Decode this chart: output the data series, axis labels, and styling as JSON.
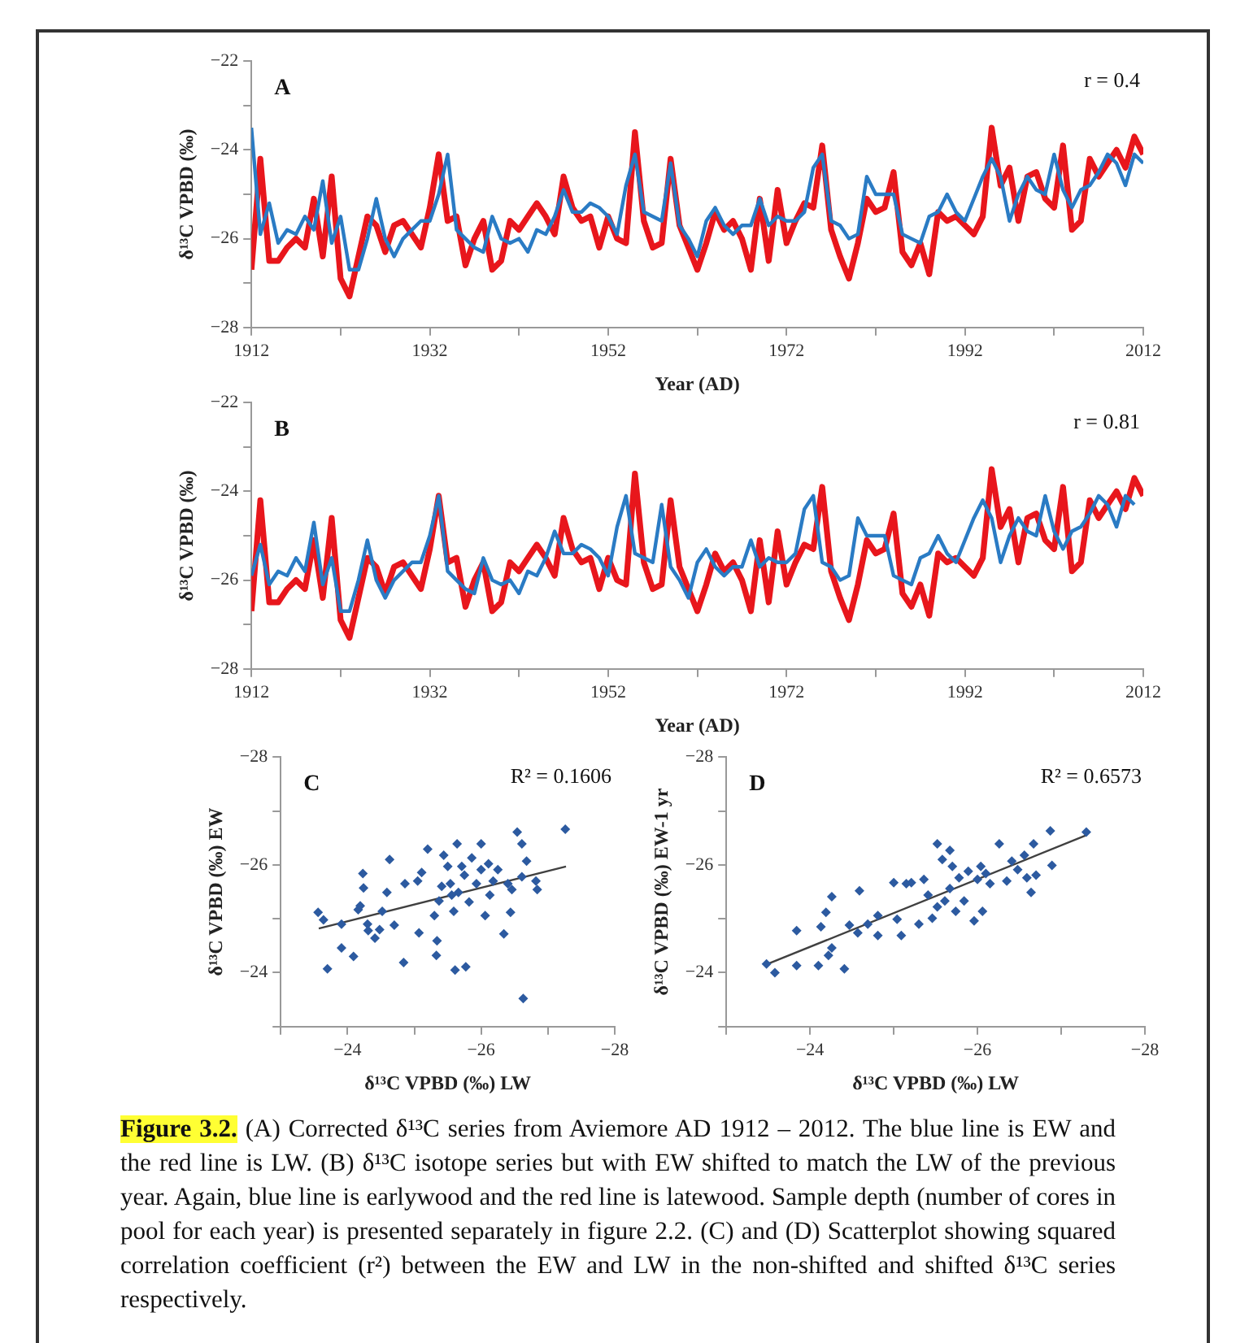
{
  "chart_data": [
    {
      "type": "line",
      "xlabel": "Year (AD)",
      "ylabel": "δ¹³C VPBD (‰)",
      "annotations": [
        "A",
        "r = 0.4"
      ],
      "marker": "none",
      "grid": false,
      "legend": false,
      "xlim": [
        1912,
        2012
      ],
      "xticks": [
        1912,
        {
          "value": 1922,
          "label": null
        },
        1932,
        {
          "value": 1942,
          "label": null
        },
        1952,
        {
          "value": 1962,
          "label": null
        },
        1972,
        {
          "value": 1982,
          "label": null
        },
        1992,
        {
          "value": 2002,
          "label": null
        },
        2012
      ],
      "ylim": [
        -28,
        -22
      ],
      "yticks": [
        -28,
        {
          "value": -27,
          "label": null
        },
        -26,
        {
          "value": -25,
          "label": null
        },
        -24,
        {
          "value": -23,
          "label": null
        },
        -22
      ],
      "x": [
        1912,
        1913,
        1914,
        1915,
        1916,
        1917,
        1918,
        1919,
        1920,
        1921,
        1922,
        1923,
        1924,
        1925,
        1926,
        1927,
        1928,
        1929,
        1930,
        1931,
        1932,
        1933,
        1934,
        1935,
        1936,
        1937,
        1938,
        1939,
        1940,
        1941,
        1942,
        1943,
        1944,
        1945,
        1946,
        1947,
        1948,
        1949,
        1950,
        1951,
        1952,
        1953,
        1954,
        1955,
        1956,
        1957,
        1958,
        1959,
        1960,
        1961,
        1962,
        1963,
        1964,
        1965,
        1966,
        1967,
        1968,
        1969,
        1970,
        1971,
        1972,
        1973,
        1974,
        1975,
        1976,
        1977,
        1978,
        1979,
        1980,
        1981,
        1982,
        1983,
        1984,
        1985,
        1986,
        1987,
        1988,
        1989,
        1990,
        1991,
        1992,
        1993,
        1994,
        1995,
        1996,
        1997,
        1998,
        1999,
        2000,
        2001,
        2002,
        2003,
        2004,
        2005,
        2006,
        2007,
        2008,
        2009,
        2010,
        2011,
        2012
      ],
      "series": [
        {
          "color": "#2a7bc4",
          "values": [
            -23.5,
            -25.9,
            -25.2,
            -26.1,
            -25.8,
            -25.9,
            -25.5,
            -25.8,
            -24.7,
            -26.1,
            -25.5,
            -26.7,
            -26.7,
            -26.0,
            -25.1,
            -26.0,
            -26.4,
            -26.0,
            -25.8,
            -25.6,
            -25.6,
            -25.0,
            -24.1,
            -25.8,
            -26.0,
            -26.2,
            -26.3,
            -25.5,
            -26.0,
            -26.1,
            -26.0,
            -26.3,
            -25.8,
            -25.9,
            -25.5,
            -24.9,
            -25.4,
            -25.4,
            -25.2,
            -25.3,
            -25.5,
            -25.9,
            -24.8,
            -24.1,
            -25.4,
            -25.5,
            -25.6,
            -24.3,
            -25.7,
            -26.0,
            -26.4,
            -25.6,
            -25.3,
            -25.7,
            -25.9,
            -25.7,
            -25.7,
            -25.1,
            -25.7,
            -25.5,
            -25.6,
            -25.6,
            -25.4,
            -24.4,
            -24.1,
            -25.6,
            -25.7,
            -26.0,
            -25.9,
            -24.6,
            -25.0,
            -25.0,
            -25.0,
            -25.9,
            -26.0,
            -26.1,
            -25.5,
            -25.4,
            -25.0,
            -25.4,
            -25.6,
            -25.1,
            -24.6,
            -24.2,
            -24.6,
            -25.6,
            -25.0,
            -24.6,
            -24.9,
            -25.0,
            -24.1,
            -24.9,
            -25.3,
            -24.9,
            -24.8,
            -24.5,
            -24.1,
            -24.3,
            -24.8,
            -24.1,
            -24.3
          ]
        },
        {
          "color": "#e8161c",
          "values": [
            -26.7,
            -24.2,
            -26.5,
            -26.5,
            -26.2,
            -26.0,
            -26.2,
            -25.1,
            -26.4,
            -24.6,
            -26.9,
            -27.3,
            -26.4,
            -25.5,
            -25.7,
            -26.3,
            -25.7,
            -25.6,
            -25.9,
            -26.2,
            -25.3,
            -24.1,
            -25.6,
            -25.5,
            -26.6,
            -26.0,
            -25.6,
            -26.7,
            -26.5,
            -25.6,
            -25.8,
            -25.5,
            -25.2,
            -25.5,
            -25.9,
            -24.6,
            -25.3,
            -25.6,
            -25.5,
            -26.2,
            -25.5,
            -26.0,
            -26.1,
            -23.6,
            -25.6,
            -26.2,
            -26.1,
            -24.2,
            -25.7,
            -26.2,
            -26.7,
            -26.1,
            -25.4,
            -25.8,
            -25.6,
            -26.0,
            -26.7,
            -25.1,
            -26.5,
            -24.9,
            -26.1,
            -25.6,
            -25.2,
            -25.3,
            -23.9,
            -25.8,
            -26.4,
            -26.9,
            -26.1,
            -25.1,
            -25.4,
            -25.3,
            -24.5,
            -26.3,
            -26.6,
            -26.1,
            -26.8,
            -25.4,
            -25.6,
            -25.5,
            -25.7,
            -25.9,
            -25.5,
            -23.5,
            -24.8,
            -24.4,
            -25.6,
            -24.6,
            -24.5,
            -25.1,
            -25.3,
            -23.9,
            -25.8,
            -25.6,
            -24.2,
            -24.6,
            -24.3,
            -24.0,
            -24.4,
            -23.7,
            -24.1
          ]
        }
      ]
    },
    {
      "type": "line",
      "xlabel": "Year (AD)",
      "ylabel": "δ¹³C VPBD (‰)",
      "annotations": [
        "B",
        "r = 0.81"
      ],
      "marker": "none",
      "grid": false,
      "legend": false,
      "xlim": [
        1912,
        2012
      ],
      "xticks": [
        1912,
        {
          "value": 1922,
          "label": null
        },
        1932,
        {
          "value": 1942,
          "label": null
        },
        1952,
        {
          "value": 1962,
          "label": null
        },
        1972,
        {
          "value": 1982,
          "label": null
        },
        1992,
        {
          "value": 2002,
          "label": null
        },
        2012
      ],
      "ylim": [
        -28,
        -22
      ],
      "yticks": [
        -28,
        {
          "value": -27,
          "label": null
        },
        -26,
        {
          "value": -25,
          "label": null
        },
        -24,
        {
          "value": -23,
          "label": null
        },
        -22
      ],
      "x": [
        1912,
        1913,
        1914,
        1915,
        1916,
        1917,
        1918,
        1919,
        1920,
        1921,
        1922,
        1923,
        1924,
        1925,
        1926,
        1927,
        1928,
        1929,
        1930,
        1931,
        1932,
        1933,
        1934,
        1935,
        1936,
        1937,
        1938,
        1939,
        1940,
        1941,
        1942,
        1943,
        1944,
        1945,
        1946,
        1947,
        1948,
        1949,
        1950,
        1951,
        1952,
        1953,
        1954,
        1955,
        1956,
        1957,
        1958,
        1959,
        1960,
        1961,
        1962,
        1963,
        1964,
        1965,
        1966,
        1967,
        1968,
        1969,
        1970,
        1971,
        1972,
        1973,
        1974,
        1975,
        1976,
        1977,
        1978,
        1979,
        1980,
        1981,
        1982,
        1983,
        1984,
        1985,
        1986,
        1987,
        1988,
        1989,
        1990,
        1991,
        1992,
        1993,
        1994,
        1995,
        1996,
        1997,
        1998,
        1999,
        2000,
        2001,
        2002,
        2003,
        2004,
        2005,
        2006,
        2007,
        2008,
        2009,
        2010,
        2011,
        2012
      ],
      "series": [
        {
          "color": "#2a7bc4",
          "values": [
            -25.9,
            -25.2,
            -26.1,
            -25.8,
            -25.9,
            -25.5,
            -25.8,
            -24.7,
            -26.1,
            -25.5,
            -26.7,
            -26.7,
            -26.0,
            -25.1,
            -26.0,
            -26.4,
            -26.0,
            -25.8,
            -25.6,
            -25.6,
            -25.0,
            -24.1,
            -25.8,
            -26.0,
            -26.2,
            -26.3,
            -25.5,
            -26.0,
            -26.1,
            -26.0,
            -26.3,
            -25.8,
            -25.9,
            -25.5,
            -24.9,
            -25.4,
            -25.4,
            -25.2,
            -25.3,
            -25.5,
            -25.9,
            -24.8,
            -24.1,
            -25.4,
            -25.5,
            -25.6,
            -24.3,
            -25.7,
            -26.0,
            -26.4,
            -25.6,
            -25.3,
            -25.7,
            -25.9,
            -25.7,
            -25.7,
            -25.1,
            -25.7,
            -25.5,
            -25.6,
            -25.6,
            -25.4,
            -24.4,
            -24.1,
            -25.6,
            -25.7,
            -26.0,
            -25.9,
            -24.6,
            -25.0,
            -25.0,
            -25.0,
            -25.9,
            -26.0,
            -26.1,
            -25.5,
            -25.4,
            -25.0,
            -25.4,
            -25.6,
            -25.1,
            -24.6,
            -24.2,
            -24.6,
            -25.6,
            -25.0,
            -24.6,
            -24.9,
            -25.0,
            -24.1,
            -24.9,
            -25.3,
            -24.9,
            -24.8,
            -24.5,
            -24.1,
            -24.3,
            -24.8,
            -24.1,
            -24.3,
            null
          ]
        },
        {
          "color": "#e8161c",
          "values": [
            -26.7,
            -24.2,
            -26.5,
            -26.5,
            -26.2,
            -26.0,
            -26.2,
            -25.1,
            -26.4,
            -24.6,
            -26.9,
            -27.3,
            -26.4,
            -25.5,
            -25.7,
            -26.3,
            -25.7,
            -25.6,
            -25.9,
            -26.2,
            -25.3,
            -24.1,
            -25.6,
            -25.5,
            -26.6,
            -26.0,
            -25.6,
            -26.7,
            -26.5,
            -25.6,
            -25.8,
            -25.5,
            -25.2,
            -25.5,
            -25.9,
            -24.6,
            -25.3,
            -25.6,
            -25.5,
            -26.2,
            -25.5,
            -26.0,
            -26.1,
            -23.6,
            -25.6,
            -26.2,
            -26.1,
            -24.2,
            -25.7,
            -26.2,
            -26.7,
            -26.1,
            -25.4,
            -25.8,
            -25.6,
            -26.0,
            -26.7,
            -25.1,
            -26.5,
            -24.9,
            -26.1,
            -25.6,
            -25.2,
            -25.3,
            -23.9,
            -25.8,
            -26.4,
            -26.9,
            -26.1,
            -25.1,
            -25.4,
            -25.3,
            -24.5,
            -26.3,
            -26.6,
            -26.1,
            -26.8,
            -25.4,
            -25.6,
            -25.5,
            -25.7,
            -25.9,
            -25.5,
            -23.5,
            -24.8,
            -24.4,
            -25.6,
            -24.6,
            -24.5,
            -25.1,
            -25.3,
            -23.9,
            -25.8,
            -25.6,
            -24.2,
            -24.6,
            -24.3,
            -24.0,
            -24.4,
            -23.7,
            -24.1
          ]
        }
      ]
    },
    {
      "type": "scatter",
      "xlabel": "δ¹³C VPBD (‰) LW",
      "ylabel": "δ¹³C VPBD (‰) EW",
      "annotations": [
        "C",
        "R² = 0.1606"
      ],
      "marker": "diamond",
      "grid": false,
      "legend": false,
      "xlim": [
        -23,
        -28
      ],
      "xticks": [
        {
          "value": -23,
          "label": null
        },
        -24,
        {
          "value": -25,
          "label": null
        },
        -26,
        {
          "value": -27,
          "label": null
        },
        -28
      ],
      "ylim": [
        -23,
        -28
      ],
      "yticks": [
        {
          "value": -23,
          "label": null
        },
        -24,
        {
          "value": -25,
          "label": null
        },
        -26,
        {
          "value": -27,
          "label": null
        },
        -28
      ],
      "series": [
        {
          "color": "#2c5aa0",
          "x": [
            -23.56,
            -23.64,
            -23.7,
            -23.91,
            -23.91,
            -24.09,
            -24.23,
            -24.24,
            -24.16,
            -24.19,
            -24.3,
            -24.31,
            -24.41,
            -24.48,
            -24.52,
            -24.59,
            -24.63,
            -24.7,
            -24.86,
            -24.84,
            -25.05,
            -25.07,
            -25.11,
            -25.2,
            -25.3,
            -25.33,
            -25.34,
            -25.37,
            -25.41,
            -25.44,
            -25.5,
            -25.54,
            -25.56,
            -25.59,
            -25.61,
            -25.64,
            -25.66,
            -25.71,
            -25.75,
            -25.77,
            -25.82,
            -25.86,
            -25.93,
            -26.0,
            -26.0,
            -26.06,
            -26.11,
            -26.13,
            -26.18,
            -26.25,
            -26.34,
            -26.4,
            -26.44,
            -26.46,
            -26.54,
            -26.61,
            -26.61,
            -26.68,
            -26.63,
            -26.82,
            -26.84,
            -27.26
          ],
          "values": [
            -25.12,
            -24.98,
            -24.07,
            -24.9,
            -24.46,
            -24.3,
            -25.84,
            -25.57,
            -25.17,
            -25.24,
            -24.9,
            -24.78,
            -24.64,
            -24.8,
            -25.14,
            -25.49,
            -26.1,
            -24.88,
            -25.65,
            -24.19,
            -25.7,
            -24.74,
            -25.86,
            -26.29,
            -25.06,
            -24.32,
            -24.59,
            -25.33,
            -25.6,
            -26.18,
            -25.97,
            -25.65,
            -25.44,
            -25.14,
            -24.05,
            -26.39,
            -25.49,
            -25.97,
            -25.81,
            -24.11,
            -25.31,
            -26.13,
            -25.65,
            -26.39,
            -25.91,
            -25.06,
            -26.02,
            -25.44,
            -25.7,
            -25.91,
            -24.72,
            -25.65,
            -25.12,
            -25.54,
            -26.61,
            -26.39,
            -25.78,
            -26.07,
            -23.52,
            -25.7,
            -25.54,
            -26.66
          ]
        },
        {
          "type": "line",
          "marker": "none",
          "color": "#404040",
          "x": [
            -23.57,
            -27.27
          ],
          "values": [
            -24.82,
            -25.97
          ]
        }
      ]
    },
    {
      "type": "scatter",
      "xlabel": "δ¹³C VPBD (‰) LW",
      "ylabel": "δ¹³C VPBD (‰) EW-1 yr",
      "annotations": [
        "D",
        "R² = 0.6573",
        "Figure 3.2.",
        "(A) Corrected δ¹³C series from Aviemore AD 1912 – 2012. The blue line is EW and the red line is LW. (B) δ¹³C isotope series but with EW shifted to match the LW of the previous year. Again, blue line is earlywood and the red line is latewood. Sample depth (number of cores in pool for each year) is presented separately in figure 2.2. (C) and (D) Scatterplot showing squared correlation coefficient (r²) between the EW and LW in the non-shifted and shifted δ¹³C series respectively."
      ],
      "marker": "diamond",
      "grid": false,
      "legend": false,
      "xlim": [
        -23,
        -28
      ],
      "xticks": [
        {
          "value": -23,
          "label": null
        },
        -24,
        {
          "value": -25,
          "label": null
        },
        -26,
        {
          "value": -27,
          "label": null
        },
        -28
      ],
      "ylim": [
        -23,
        -28
      ],
      "yticks": [
        {
          "value": -23,
          "label": null
        },
        -24,
        {
          "value": -25,
          "label": null
        },
        -26,
        {
          "value": -27,
          "label": null
        },
        -28
      ],
      "series": [
        {
          "color": "#2c5aa0",
          "x": [
            -23.48,
            -23.58,
            -23.84,
            -23.84,
            -24.1,
            -24.13,
            -24.19,
            -24.22,
            -24.26,
            -24.26,
            -24.41,
            -24.47,
            -24.59,
            -24.57,
            -24.69,
            -24.81,
            -24.81,
            -25.0,
            -25.04,
            -25.09,
            -25.15,
            -25.21,
            -25.3,
            -25.36,
            -25.41,
            -25.46,
            -25.52,
            -25.52,
            -25.58,
            -25.61,
            -25.67,
            -25.67,
            -25.7,
            -25.74,
            -25.78,
            -25.84,
            -25.89,
            -25.96,
            -26.0,
            -26.04,
            -26.06,
            -26.1,
            -26.15,
            -26.26,
            -26.35,
            -26.41,
            -26.48,
            -26.56,
            -26.59,
            -26.64,
            -26.67,
            -26.7,
            -26.87,
            -26.89,
            -27.3
          ],
          "values": [
            -24.16,
            -24.0,
            -24.78,
            -24.13,
            -24.13,
            -24.85,
            -25.12,
            -24.32,
            -24.46,
            -25.41,
            -24.07,
            -24.88,
            -25.52,
            -24.74,
            -24.9,
            -25.06,
            -24.69,
            -25.67,
            -24.99,
            -24.69,
            -25.65,
            -25.67,
            -24.9,
            -25.73,
            -25.44,
            -25.01,
            -26.39,
            -25.22,
            -26.1,
            -25.33,
            -26.27,
            -25.56,
            -25.97,
            -25.14,
            -25.76,
            -25.33,
            -25.88,
            -24.96,
            -25.73,
            -25.97,
            -25.14,
            -25.84,
            -25.65,
            -26.39,
            -25.7,
            -26.07,
            -25.91,
            -26.18,
            -25.76,
            -25.49,
            -26.39,
            -25.81,
            -26.63,
            -25.99,
            -26.61
          ]
        },
        {
          "type": "line",
          "marker": "none",
          "color": "#404040",
          "x": [
            -23.46,
            -27.3
          ],
          "values": [
            -24.14,
            -26.55
          ]
        }
      ]
    }
  ]
}
